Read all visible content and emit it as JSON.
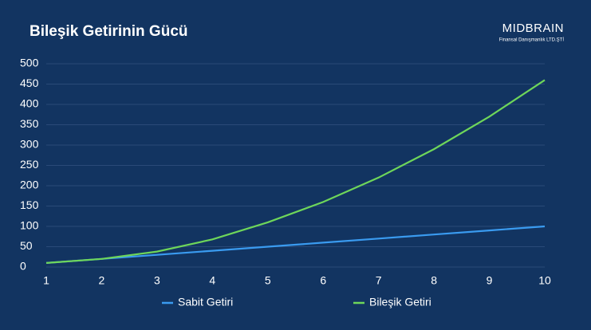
{
  "chart_data": {
    "type": "line",
    "title": "Bileşik Getirinin Gücü",
    "x": [
      1,
      2,
      3,
      4,
      5,
      6,
      7,
      8,
      9,
      10
    ],
    "series": [
      {
        "name": "Sabit Getiri",
        "color": "#3a9bf0",
        "values": [
          10,
          20,
          30,
          40,
          50,
          60,
          70,
          80,
          90,
          100
        ]
      },
      {
        "name": "Bileşik Getiri",
        "color": "#6ed65a",
        "values": [
          10,
          20,
          38,
          68,
          110,
          160,
          220,
          290,
          370,
          460
        ]
      }
    ],
    "xlim": [
      1,
      10
    ],
    "xticks": [
      1,
      2,
      3,
      4,
      5,
      6,
      7,
      8,
      9,
      10
    ],
    "ylim": [
      0,
      500
    ],
    "yticks": [
      0,
      50,
      100,
      150,
      200,
      250,
      300,
      350,
      400,
      450,
      500
    ],
    "grid": true,
    "legend": "bottom"
  },
  "logo": {
    "name": "MIDBRAIN",
    "tagline": "Finansal Danışmanlık LTD.ŞTİ"
  }
}
